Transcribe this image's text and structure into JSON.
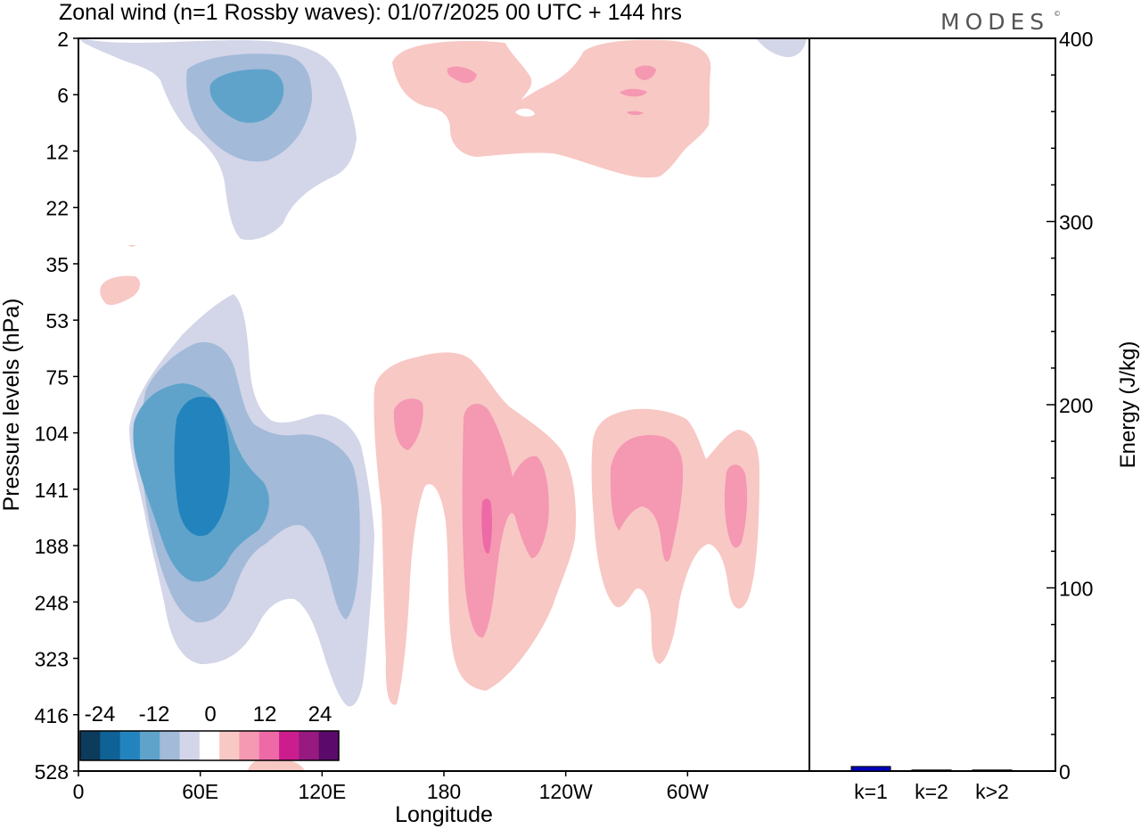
{
  "title": "Zonal wind (n=1 Rossby waves):  01/07/2025  00 UTC  + 144 hrs",
  "logo": "MODES",
  "logo_mark": "©",
  "colors": {
    "neg": [
      "#0d3b5c",
      "#0f6296",
      "#2384bd",
      "#5fa3cb",
      "#a3bad9",
      "#d3d5e8"
    ],
    "pos": [
      "#f8c8c4",
      "#f598b2",
      "#ee6aa7",
      "#cb1d8e",
      "#961a80",
      "#5b0a6b"
    ],
    "bar": "#0000bb",
    "frame": "#000000"
  },
  "chart_data": [
    {
      "type": "contour",
      "xlabel": "Longitude",
      "ylabel": "Pressure levels (hPa)",
      "x_ticks": [
        "0",
        "60E",
        "120E",
        "180",
        "120W",
        "60W"
      ],
      "x_range_deg": [
        0,
        360
      ],
      "y_ticks": [
        "2",
        "6",
        "12",
        "22",
        "35",
        "53",
        "75",
        "104",
        "141",
        "188",
        "248",
        "323",
        "416",
        "528"
      ],
      "colorbar_labels": [
        "-24",
        "-12",
        "0",
        "12",
        "24"
      ],
      "features": [
        {
          "sign": "negative",
          "peak": -18,
          "lon": 60,
          "level_hPa": 141
        },
        {
          "sign": "negative",
          "peak": -12,
          "lon": 87,
          "level_hPa": 6
        },
        {
          "sign": "positive",
          "peak": 12,
          "lon": 200,
          "level_hPa": 160
        },
        {
          "sign": "positive",
          "peak": 6,
          "lon": 170,
          "level_hPa": 104
        },
        {
          "sign": "positive",
          "peak": 6,
          "lon": 290,
          "level_hPa": 141
        },
        {
          "sign": "positive",
          "peak": 3,
          "lon": 230,
          "level_hPa": 8
        }
      ]
    },
    {
      "type": "bar",
      "ylabel": "Energy (J/kg)",
      "categories": [
        "k=1",
        "k=2",
        "k>2"
      ],
      "values": [
        2.5,
        0.4,
        0.5
      ],
      "ylim": [
        0,
        400
      ],
      "y_ticks": [
        "0",
        "100",
        "200",
        "300",
        "400"
      ]
    }
  ]
}
